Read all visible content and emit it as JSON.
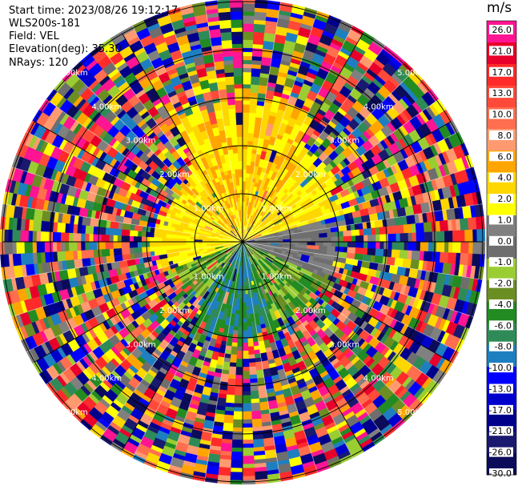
{
  "header": {
    "start_time": "Start time: 2023/08/26 19:12:17",
    "instrument": "WLS200s-181",
    "field": "Field: VEL",
    "elevation": "Elevation(deg): 35.30",
    "nrays": "NRays: 120"
  },
  "colorbar": {
    "unit": "m/s",
    "labels": [
      "26.0",
      "21.0",
      "17.0",
      "13.0",
      "10.0",
      "8.0",
      "6.0",
      "4.0",
      "2.0",
      "1.0",
      "0.0",
      "-1.0",
      "-2.0",
      "-4.0",
      "-6.0",
      "-8.0",
      "-10.0",
      "-13.0",
      "-17.0",
      "-21.0",
      "-26.0",
      "-30.0"
    ],
    "colors": [
      "#ff1493",
      "#e8002a",
      "#ff2a2a",
      "#ff4a3a",
      "#ff6e4e",
      "#ff9a70",
      "#ffa500",
      "#ffd700",
      "#ffff00",
      "#808080",
      "#6e6e6e",
      "#9acd32",
      "#6b8e23",
      "#228b22",
      "#2e8b57",
      "#1e7fc0",
      "#0000ff",
      "#0000cd",
      "#00008b",
      "#191970",
      "#0b0b5a"
    ]
  },
  "range_rings": {
    "labels": [
      "1.00km",
      "2.00km",
      "3.00km",
      "4.00km",
      "5.00km"
    ]
  },
  "chart_data": {
    "type": "ppi",
    "field": "VEL",
    "units": "m/s",
    "nrays": 120,
    "rings_km": [
      1.0,
      2.0,
      3.0,
      4.0,
      5.0
    ],
    "near_range_pattern": [
      {
        "sector": "north",
        "approx_vel": "2.0 to 6.0"
      },
      {
        "sector": "east",
        "approx_vel": "-1.0 to 1.0"
      },
      {
        "sector": "south-east",
        "approx_vel": "-4.0 to -2.0"
      },
      {
        "sector": "south",
        "approx_vel": "-8.0 to -4.0"
      },
      {
        "sector": "west",
        "approx_vel": "2.0 to 4.0"
      }
    ]
  }
}
